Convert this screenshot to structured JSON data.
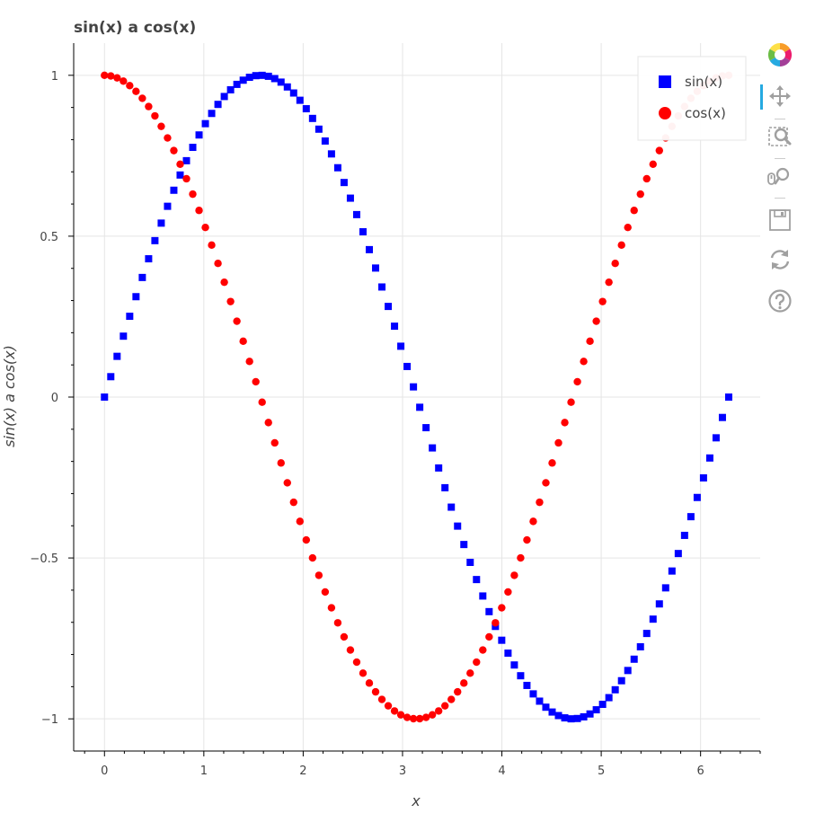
{
  "chart_data": {
    "type": "scatter",
    "title": "sin(x) a cos(x)",
    "xlabel": "x",
    "ylabel": "sin(x) a cos(x)",
    "xlim": [
      -0.31,
      6.6
    ],
    "ylim": [
      -1.1,
      1.1
    ],
    "xticks": [
      0,
      1,
      2,
      3,
      4,
      5,
      6
    ],
    "xtick_labels": [
      "0",
      "1",
      "2",
      "3",
      "4",
      "5",
      "6"
    ],
    "yticks": [
      -1,
      -0.5,
      0,
      0.5,
      1
    ],
    "ytick_labels": [
      "−1",
      "−0.5",
      "0",
      "0.5",
      "1"
    ],
    "grid": true,
    "legend_position": "top-right",
    "x": [
      0,
      0.0635,
      0.1269,
      0.1904,
      0.2539,
      0.3173,
      0.3808,
      0.4443,
      0.5077,
      0.5712,
      0.6347,
      0.6981,
      0.7616,
      0.8251,
      0.8885,
      0.952,
      1.0155,
      1.0789,
      1.1424,
      1.2059,
      1.2693,
      1.3328,
      1.3963,
      1.4597,
      1.5232,
      1.5867,
      1.6501,
      1.7136,
      1.7771,
      1.8405,
      1.904,
      1.9675,
      2.0309,
      2.0944,
      2.1579,
      2.2213,
      2.2848,
      2.3483,
      2.4117,
      2.4752,
      2.5387,
      2.6021,
      2.6656,
      2.7291,
      2.7925,
      2.856,
      2.9195,
      2.9829,
      3.0464,
      3.1099,
      3.1733,
      3.2368,
      3.3003,
      3.3637,
      3.4272,
      3.4907,
      3.5541,
      3.6176,
      3.6811,
      3.7445,
      3.808,
      3.8715,
      3.9349,
      3.9984,
      4.0619,
      4.1253,
      4.1888,
      4.2523,
      4.3157,
      4.3792,
      4.4427,
      4.5061,
      4.5696,
      4.6331,
      4.6965,
      4.76,
      4.8235,
      4.8869,
      4.9504,
      5.0139,
      5.0773,
      5.1408,
      5.2043,
      5.2677,
      5.3312,
      5.3947,
      5.4581,
      5.5216,
      5.5851,
      5.6485,
      5.712,
      5.7755,
      5.8389,
      5.9024,
      5.9659,
      6.0293,
      6.0928,
      6.1563,
      6.2197,
      6.2832
    ],
    "series": [
      {
        "name": "sin(x)",
        "marker": "square",
        "color": "#0000ff",
        "values": [
          0,
          0.0634,
          0.1266,
          0.1893,
          0.2511,
          0.312,
          0.3717,
          0.4298,
          0.4862,
          0.5406,
          0.5929,
          0.6428,
          0.6901,
          0.7346,
          0.7761,
          0.8146,
          0.8497,
          0.8815,
          0.9096,
          0.9341,
          0.9549,
          0.9718,
          0.9848,
          0.9938,
          0.9989,
          0.9999,
          0.9969,
          0.9898,
          0.9788,
          0.9638,
          0.945,
          0.9224,
          0.8961,
          0.866,
          0.8326,
          0.7958,
          0.7557,
          0.7127,
          0.6668,
          0.6182,
          0.5671,
          0.5137,
          0.4582,
          0.401,
          0.3421,
          0.2817,
          0.2203,
          0.158,
          0.0951,
          0.0317,
          -0.0317,
          -0.0951,
          -0.158,
          -0.2203,
          -0.2817,
          -0.3421,
          -0.401,
          -0.4582,
          -0.5137,
          -0.5671,
          -0.6182,
          -0.6668,
          -0.7127,
          -0.7557,
          -0.7958,
          -0.8326,
          -0.866,
          -0.8961,
          -0.9224,
          -0.945,
          -0.9638,
          -0.9788,
          -0.9898,
          -0.9969,
          -0.9999,
          -0.9989,
          -0.9938,
          -0.9848,
          -0.9718,
          -0.9549,
          -0.9341,
          -0.9096,
          -0.8815,
          -0.8497,
          -0.8146,
          -0.7761,
          -0.7346,
          -0.6901,
          -0.6428,
          -0.5929,
          -0.5406,
          -0.4862,
          -0.4298,
          -0.3717,
          -0.312,
          -0.2511,
          -0.1893,
          -0.1266,
          -0.0634,
          0
        ]
      },
      {
        "name": "cos(x)",
        "marker": "circle",
        "color": "#ff0000",
        "values": [
          1,
          0.998,
          0.992,
          0.9819,
          0.9679,
          0.9501,
          0.9284,
          0.9029,
          0.8738,
          0.8413,
          0.8053,
          0.766,
          0.7237,
          0.6785,
          0.6306,
          0.5801,
          0.5272,
          0.4723,
          0.4154,
          0.3569,
          0.2969,
          0.2358,
          0.1736,
          0.1108,
          0.0476,
          -0.0159,
          -0.0792,
          -0.1423,
          -0.2048,
          -0.2665,
          -0.327,
          -0.3863,
          -0.4441,
          -0.5,
          -0.5539,
          -0.6056,
          -0.6549,
          -0.7015,
          -0.7453,
          -0.7861,
          -0.8237,
          -0.858,
          -0.8888,
          -0.9161,
          -0.9397,
          -0.9595,
          -0.9755,
          -0.9874,
          -0.9955,
          -0.9995,
          -0.9995,
          -0.9955,
          -0.9874,
          -0.9755,
          -0.9595,
          -0.9397,
          -0.9161,
          -0.8888,
          -0.858,
          -0.8237,
          -0.7861,
          -0.7453,
          -0.7015,
          -0.6549,
          -0.6056,
          -0.5539,
          -0.5,
          -0.4441,
          -0.3863,
          -0.327,
          -0.2665,
          -0.2048,
          -0.1423,
          -0.0792,
          -0.0159,
          0.0476,
          0.1108,
          0.1736,
          0.2358,
          0.2969,
          0.3569,
          0.4154,
          0.4723,
          0.5272,
          0.5801,
          0.6306,
          0.6785,
          0.7237,
          0.766,
          0.8053,
          0.8413,
          0.8738,
          0.9029,
          0.9284,
          0.9501,
          0.9679,
          0.9819,
          0.992,
          0.998,
          1
        ]
      }
    ]
  },
  "toolbar": {
    "tools": [
      {
        "name": "bokeh-logo-icon",
        "interactable": true
      },
      {
        "name": "pan-icon",
        "interactable": true,
        "active": true
      },
      {
        "name": "box-zoom-icon",
        "interactable": true
      },
      {
        "name": "wheel-zoom-icon",
        "interactable": true
      },
      {
        "name": "save-icon",
        "interactable": true
      },
      {
        "name": "reset-icon",
        "interactable": true
      },
      {
        "name": "help-icon",
        "interactable": true
      }
    ],
    "icon_color": "#a0a0a0",
    "active_color": "#26aae1"
  }
}
